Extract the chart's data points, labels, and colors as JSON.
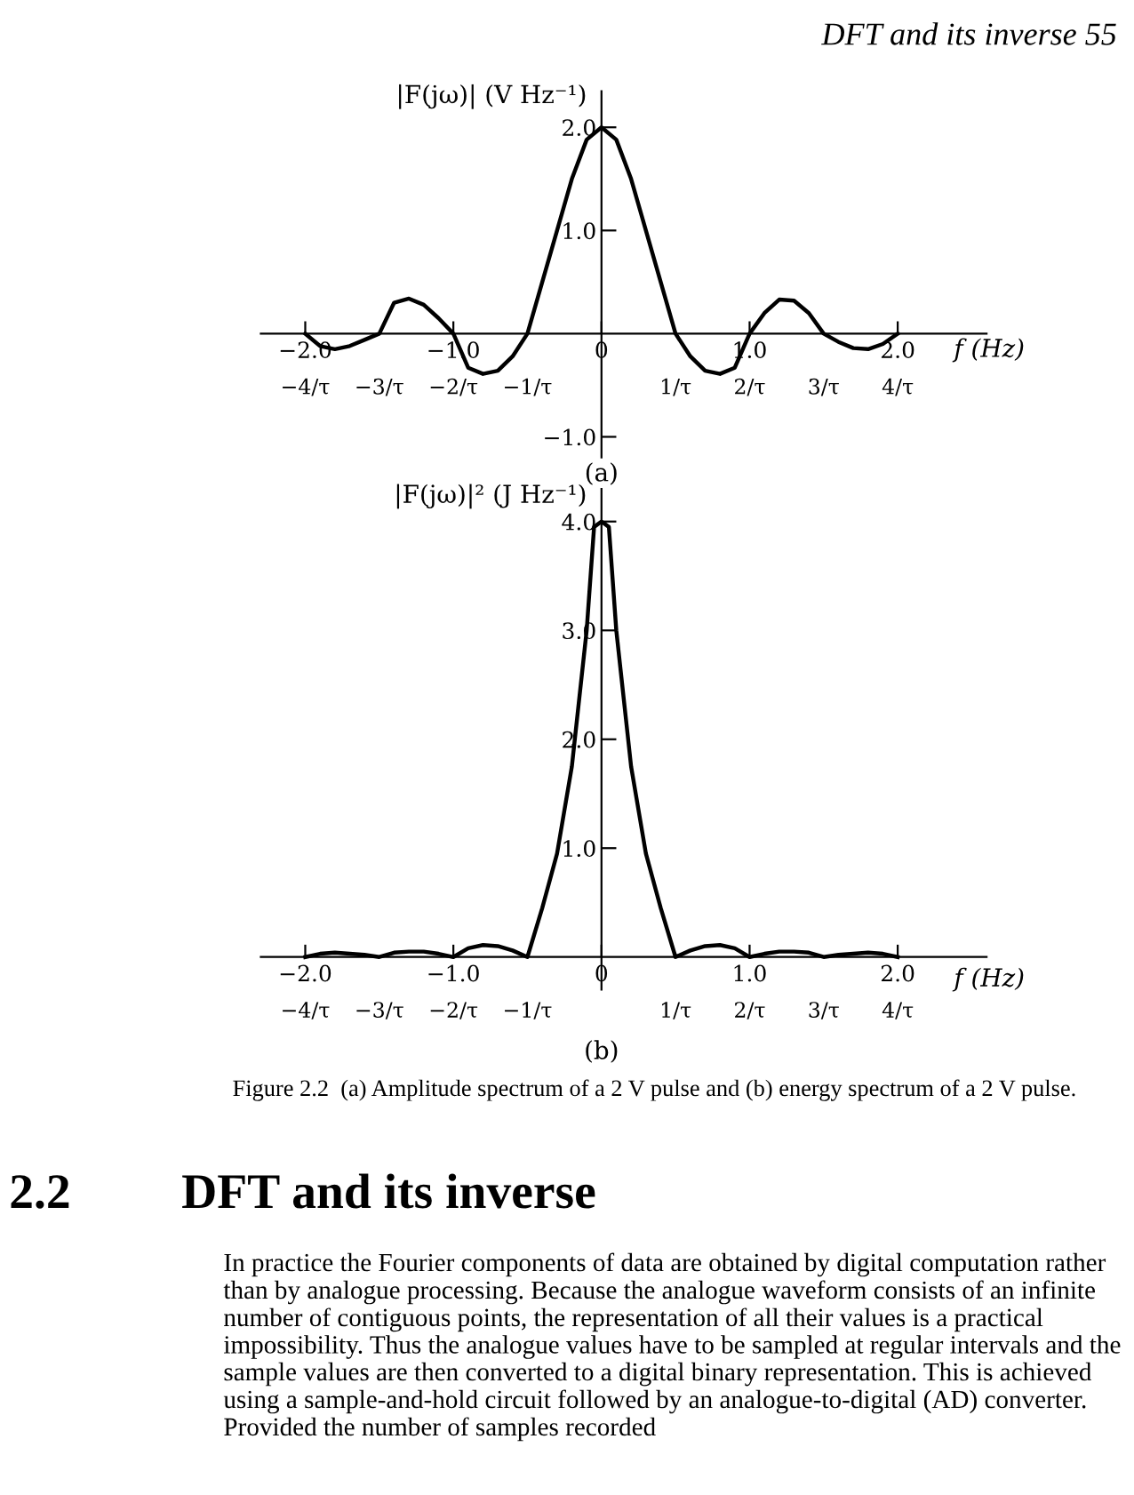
{
  "chart_data": [
    {
      "type": "line",
      "subtitle": "(a)",
      "ylabel": "|F(jω)| (V Hz⁻¹)",
      "xlabel": "f (Hz)",
      "annotations": [
        "DFT and its inverse 55"
      ],
      "x": [
        -2.0,
        -1.9,
        -1.8,
        -1.7,
        -1.6,
        -1.5,
        -1.4,
        -1.3,
        -1.2,
        -1.1,
        -1.0,
        -0.9,
        -0.8,
        -0.7,
        -0.6,
        -0.5,
        -0.4,
        -0.3,
        -0.2,
        -0.1,
        0,
        0.1,
        0.2,
        0.3,
        0.4,
        0.5,
        0.6,
        0.7,
        0.8,
        0.9,
        1.0,
        1.1,
        1.2,
        1.3,
        1.4,
        1.5,
        1.6,
        1.7,
        1.8,
        1.9,
        2.0
      ],
      "series": [
        {
          "color": "#000000",
          "values": [
            0,
            -0.12,
            -0.15,
            -0.12,
            -0.06,
            0,
            0.3,
            0.34,
            0.28,
            0.15,
            0,
            -0.33,
            -0.39,
            -0.36,
            -0.22,
            0,
            0.5,
            1.0,
            1.5,
            1.88,
            2.0,
            1.88,
            1.5,
            1.0,
            0.5,
            0,
            -0.22,
            -0.36,
            -0.39,
            -0.33,
            0,
            0.2,
            0.33,
            0.32,
            0.2,
            0,
            -0.08,
            -0.14,
            -0.15,
            -0.1,
            0
          ]
        }
      ],
      "xlim": [
        -2.3,
        2.6
      ],
      "ylim": [
        -1.2,
        2.35
      ],
      "xticks": [
        {
          "value": -2.0,
          "label": "−2.0"
        },
        {
          "value": -1.0,
          "label": "−1.0"
        },
        0,
        {
          "value": 1.0,
          "label": "1.0"
        },
        {
          "value": 2.0,
          "label": "2.0"
        }
      ],
      "x2ticks": [
        {
          "value": -4,
          "label": "−4/τ"
        },
        {
          "value": -3,
          "label": "−3/τ"
        },
        {
          "value": -2,
          "label": "−2/τ"
        },
        {
          "value": -1,
          "label": "−1/τ"
        },
        {
          "value": 1,
          "label": "1/τ"
        },
        {
          "value": 2,
          "label": "2/τ"
        },
        {
          "value": 3,
          "label": "3/τ"
        },
        {
          "value": 4,
          "label": "4/τ"
        }
      ],
      "x2lim": [
        -4.6,
        5.2
      ],
      "yticks": [
        {
          "value": -1.0,
          "label": "−1.0"
        },
        {
          "value": 1.0,
          "label": "1.0"
        },
        {
          "value": 2.0,
          "label": "2.0"
        }
      ],
      "line_style": "solid"
    },
    {
      "type": "line",
      "subtitle": "(b)",
      "ylabel": "|F(jω)|² (J Hz⁻¹)",
      "xlabel": "f (Hz)",
      "annotations": [
        "Figure 2.2  (a) Amplitude spectrum of a 2 V pulse and (b) energy spectrum of a 2 V pulse.",
        "2.2",
        "DFT and its inverse",
        "In practice the Fourier components of data are obtained by digital computation rather than by analogue processing. Because the analogue waveform consists of an infinite number of contiguous points, the representation of all their values is a practical impossibility. Thus the analogue values have to be sampled at regular intervals and the sample values are then converted to a digital binary representation. This is achieved using a sample-and-hold circuit followed by an analogue-to-digital (AD) converter. Provided the number of samples recorded"
      ],
      "x": [
        -2.0,
        -1.9,
        -1.8,
        -1.7,
        -1.6,
        -1.5,
        -1.4,
        -1.3,
        -1.2,
        -1.1,
        -1.0,
        -0.9,
        -0.8,
        -0.7,
        -0.6,
        -0.5,
        -0.4,
        -0.3,
        -0.2,
        -0.1,
        -0.05,
        0,
        0.05,
        0.1,
        0.2,
        0.3,
        0.4,
        0.5,
        0.6,
        0.7,
        0.8,
        0.9,
        1.0,
        1.1,
        1.2,
        1.3,
        1.4,
        1.5,
        1.6,
        1.7,
        1.8,
        1.9,
        2.0
      ],
      "series": [
        {
          "color": "#000000",
          "values": [
            0,
            0.03,
            0.04,
            0.03,
            0.02,
            0,
            0.04,
            0.05,
            0.05,
            0.03,
            0,
            0.08,
            0.11,
            0.1,
            0.06,
            0,
            0.45,
            0.95,
            1.75,
            3.0,
            3.95,
            4.0,
            3.95,
            3.0,
            1.75,
            0.95,
            0.45,
            0,
            0.06,
            0.1,
            0.11,
            0.08,
            0,
            0.03,
            0.05,
            0.05,
            0.04,
            0,
            0.02,
            0.03,
            0.04,
            0.03,
            0
          ]
        }
      ],
      "xlim": [
        -2.3,
        2.6
      ],
      "ylim": [
        -0.3,
        4.3
      ],
      "xticks": [
        {
          "value": -2.0,
          "label": "−2.0"
        },
        {
          "value": -1.0,
          "label": "−1.0"
        },
        0,
        {
          "value": 1.0,
          "label": "1.0"
        },
        {
          "value": 2.0,
          "label": "2.0"
        }
      ],
      "x2ticks": [
        {
          "value": -4,
          "label": "−4/τ"
        },
        {
          "value": -3,
          "label": "−3/τ"
        },
        {
          "value": -2,
          "label": "−2/τ"
        },
        {
          "value": -1,
          "label": "−1/τ"
        },
        {
          "value": 1,
          "label": "1/τ"
        },
        {
          "value": 2,
          "label": "2/τ"
        },
        {
          "value": 3,
          "label": "3/τ"
        },
        {
          "value": 4,
          "label": "4/τ"
        }
      ],
      "x2lim": [
        -4.6,
        5.2
      ],
      "yticks": [
        {
          "value": 1.0,
          "label": "1.0"
        },
        {
          "value": 2.0,
          "label": "2.0"
        },
        {
          "value": 3.0,
          "label": "3.0"
        },
        {
          "value": 4.0,
          "label": "4.0"
        }
      ],
      "line_style": "solid"
    }
  ]
}
